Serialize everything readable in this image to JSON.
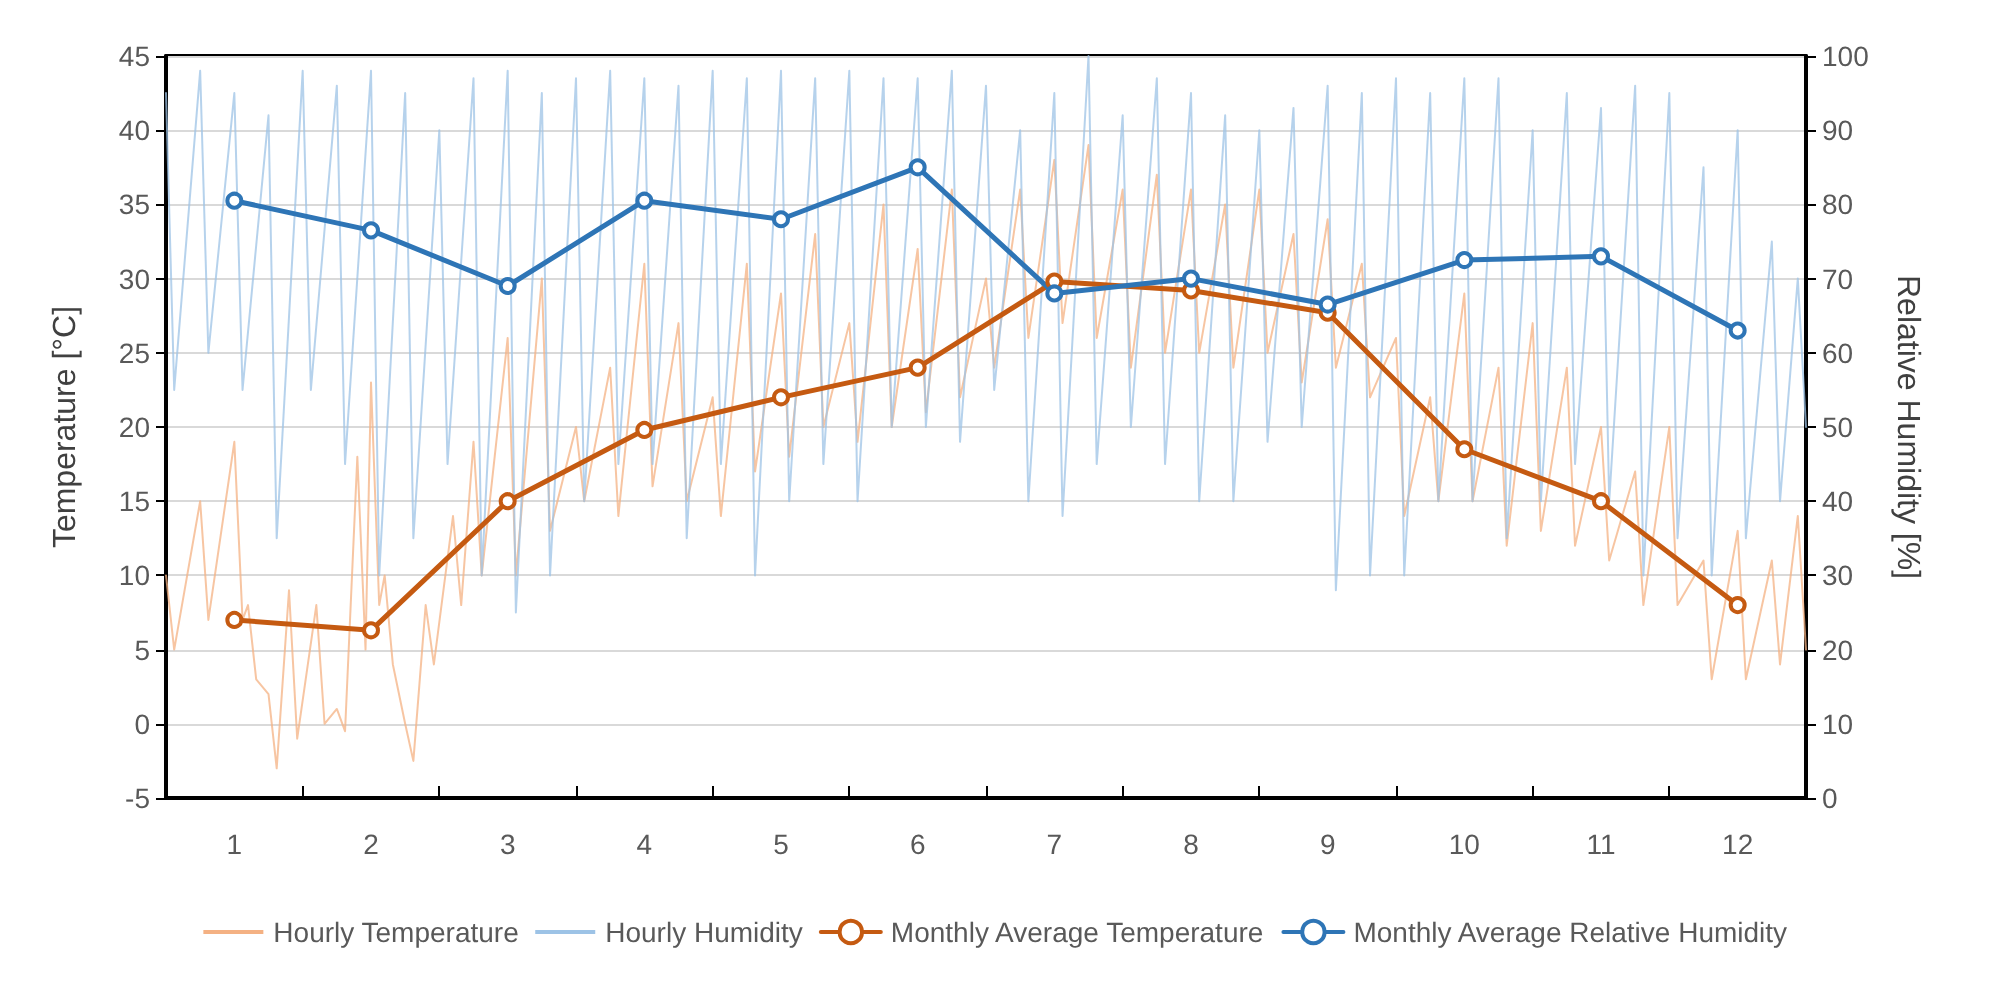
{
  "chart_data": {
    "type": "line",
    "ylabel": "Temperature [°C]",
    "y2label": "Relative Humidity [%]",
    "xlim": [
      0.5,
      12.5
    ],
    "xticks": [
      1,
      {
        "value": 1.5,
        "label": null
      },
      2,
      {
        "value": 2.5,
        "label": null
      },
      3,
      {
        "value": 3.5,
        "label": null
      },
      4,
      {
        "value": 4.5,
        "label": null
      },
      5,
      {
        "value": 5.5,
        "label": null
      },
      6,
      {
        "value": 6.5,
        "label": null
      },
      7,
      {
        "value": 7.5,
        "label": null
      },
      8,
      {
        "value": 8.5,
        "label": null
      },
      9,
      {
        "value": 9.5,
        "label": null
      },
      10,
      {
        "value": 10.5,
        "label": null
      },
      11,
      {
        "value": 11.5,
        "label": null
      },
      12
    ],
    "ylim": [
      -5,
      45
    ],
    "yticks": [
      -5,
      0,
      5,
      10,
      15,
      20,
      25,
      30,
      35,
      40,
      45
    ],
    "y2lim": [
      0,
      100
    ],
    "y2ticks": [
      0,
      10,
      20,
      30,
      40,
      50,
      60,
      70,
      80,
      90,
      100
    ],
    "grid": "y",
    "legend": "bottom",
    "line_style": "solid",
    "series": [
      {
        "name": "Hourly Temperature",
        "color": "#f4b183",
        "marker": "none",
        "x": [
          0.5,
          0.56,
          0.75,
          0.81,
          1.0,
          1.06,
          1.1,
          1.16,
          1.25,
          1.31,
          1.4,
          1.46,
          1.6,
          1.66,
          1.75,
          1.81,
          1.9,
          1.96,
          2.0,
          2.06,
          2.1,
          2.16,
          2.25,
          2.31,
          2.4,
          2.46,
          2.6,
          2.66,
          2.75,
          2.81,
          3.0,
          3.06,
          3.25,
          3.31,
          3.5,
          3.56,
          3.75,
          3.81,
          4.0,
          4.06,
          4.25,
          4.31,
          4.5,
          4.56,
          4.75,
          4.81,
          5.0,
          5.06,
          5.25,
          5.31,
          5.5,
          5.56,
          5.75,
          5.81,
          6.0,
          6.06,
          6.25,
          6.31,
          6.5,
          6.56,
          6.75,
          6.81,
          7.0,
          7.06,
          7.25,
          7.31,
          7.5,
          7.56,
          7.75,
          7.81,
          8.0,
          8.06,
          8.25,
          8.31,
          8.5,
          8.56,
          8.75,
          8.81,
          9.0,
          9.06,
          9.25,
          9.31,
          9.5,
          9.56,
          9.75,
          9.81,
          10.0,
          10.06,
          10.25,
          10.31,
          10.5,
          10.56,
          10.75,
          10.81,
          11.0,
          11.06,
          11.25,
          11.31,
          11.5,
          11.56,
          11.75,
          11.81,
          12.0,
          12.06,
          12.25,
          12.31,
          12.44,
          12.5
        ],
        "values": [
          10,
          5,
          15,
          7,
          19,
          7,
          8,
          3,
          2,
          -3,
          9,
          -1,
          8,
          0,
          1,
          -0.5,
          18,
          5,
          23,
          8,
          10,
          4,
          0,
          -2.5,
          8,
          4,
          14,
          8,
          19,
          10,
          26,
          10,
          30,
          13,
          20,
          15,
          24,
          14,
          31,
          16,
          27,
          15,
          22,
          14,
          31,
          17,
          29,
          18,
          33,
          20,
          27,
          19,
          35,
          20,
          32,
          21,
          36,
          22,
          30,
          24,
          36,
          26,
          38,
          27,
          39,
          26,
          36,
          24,
          37,
          25,
          36,
          25,
          35,
          24,
          36,
          25,
          33,
          23,
          34,
          24,
          31,
          22,
          26,
          14,
          22,
          15,
          29,
          15,
          24,
          12,
          27,
          13,
          24,
          12,
          20,
          11,
          17,
          8,
          20,
          8,
          11,
          3,
          13,
          3,
          11,
          4,
          14,
          5
        ]
      },
      {
        "name": "Hourly Humidity",
        "color": "#9dc3e6",
        "marker": "none",
        "axis": "y2",
        "x": [
          0.5,
          0.56,
          0.75,
          0.81,
          1.0,
          1.06,
          1.25,
          1.31,
          1.5,
          1.56,
          1.75,
          1.81,
          2.0,
          2.06,
          2.25,
          2.31,
          2.5,
          2.56,
          2.75,
          2.81,
          3.0,
          3.06,
          3.25,
          3.31,
          3.5,
          3.56,
          3.75,
          3.81,
          4.0,
          4.06,
          4.25,
          4.31,
          4.5,
          4.56,
          4.75,
          4.81,
          5.0,
          5.06,
          5.25,
          5.31,
          5.5,
          5.56,
          5.75,
          5.81,
          6.0,
          6.06,
          6.25,
          6.31,
          6.5,
          6.56,
          6.75,
          6.81,
          7.0,
          7.06,
          7.25,
          7.31,
          7.5,
          7.56,
          7.75,
          7.81,
          8.0,
          8.06,
          8.25,
          8.31,
          8.5,
          8.56,
          8.75,
          8.81,
          9.0,
          9.06,
          9.25,
          9.31,
          9.5,
          9.56,
          9.75,
          9.81,
          10.0,
          10.06,
          10.25,
          10.31,
          10.5,
          10.56,
          10.75,
          10.81,
          11.0,
          11.06,
          11.25,
          11.31,
          11.5,
          11.56,
          11.75,
          11.81,
          12.0,
          12.06,
          12.25,
          12.31,
          12.44,
          12.5
        ],
        "values": [
          95,
          55,
          98,
          60,
          95,
          55,
          92,
          35,
          98,
          55,
          96,
          45,
          98,
          30,
          95,
          35,
          90,
          45,
          97,
          30,
          98,
          25,
          95,
          30,
          97,
          40,
          98,
          45,
          97,
          45,
          96,
          35,
          98,
          45,
          97,
          30,
          98,
          40,
          97,
          45,
          98,
          40,
          97,
          50,
          97,
          50,
          98,
          48,
          96,
          55,
          90,
          40,
          95,
          38,
          100,
          45,
          92,
          50,
          97,
          45,
          95,
          40,
          92,
          40,
          90,
          48,
          93,
          50,
          96,
          28,
          95,
          30,
          97,
          30,
          95,
          40,
          97,
          40,
          97,
          35,
          90,
          40,
          95,
          45,
          93,
          40,
          96,
          30,
          95,
          35,
          85,
          30,
          90,
          35,
          75,
          40,
          70,
          50
        ]
      },
      {
        "name": "Monthly Average Temperature",
        "color": "#c55a11",
        "marker": "circle",
        "x": [
          1,
          2,
          3,
          4,
          5,
          6,
          7,
          8,
          9,
          10,
          11,
          12
        ],
        "values": [
          7,
          6.3,
          15,
          19.8,
          22,
          24,
          29.8,
          29.2,
          27.7,
          18.5,
          15,
          8
        ]
      },
      {
        "name": "Monthly Average Relative Humidity",
        "color": "#2e75b6",
        "marker": "circle",
        "axis": "y2",
        "x": [
          1,
          2,
          3,
          4,
          5,
          6,
          7,
          8,
          9,
          10,
          11,
          12
        ],
        "values": [
          80.5,
          76.5,
          69,
          80.5,
          78,
          85,
          68,
          70,
          66.5,
          72.5,
          73,
          63
        ]
      }
    ]
  }
}
